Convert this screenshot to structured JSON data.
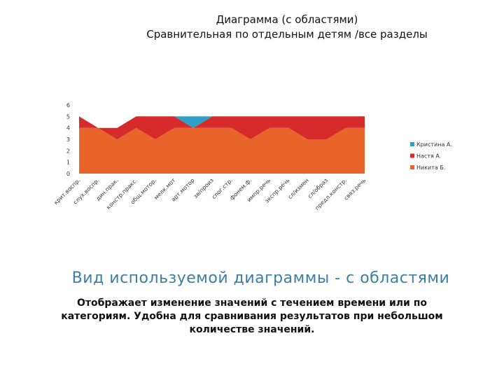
{
  "chart_data": {
    "type": "area",
    "stacked": true,
    "title": "Диаграмма (с областями)",
    "subtitle": "Сравнительная по отдельным детям /все разделы",
    "ylim": [
      0,
      6
    ],
    "yticks": [
      "0",
      "1",
      "2",
      "3",
      "4",
      "5",
      "6"
    ],
    "grid": false,
    "legend_position": "right",
    "categories": [
      "крит.воспр.",
      "слух.воспр.",
      "дин.прак.",
      "констр.пракс.",
      "общ.мотор.",
      "мелк.мот",
      "арт.мотор",
      "зв/произ",
      "слог.стр.",
      "фонем.ф.",
      "импр.речь",
      "экспр.речь",
      "сл/измен",
      "сл/образ",
      "предл.констр.",
      "связ.речь"
    ],
    "series": [
      {
        "name": "Никита Б.",
        "color": "#e8642a",
        "values": [
          4,
          4,
          3,
          4,
          3,
          4,
          4,
          4,
          4,
          3,
          4,
          4,
          3,
          3,
          4,
          4
        ]
      },
      {
        "name": "Настя А.",
        "color": "#d72a2a",
        "values": [
          1,
          0,
          1,
          1,
          2,
          1,
          0,
          1,
          1,
          2,
          1,
          1,
          2,
          2,
          1,
          1
        ]
      },
      {
        "name": "Кристина А.",
        "color": "#2e9ec4",
        "values": [
          0,
          0,
          0,
          0,
          0,
          0,
          1,
          0,
          0,
          0,
          0,
          0,
          0,
          0,
          0,
          0
        ]
      }
    ]
  },
  "slide": {
    "heading": "Вид используемой диаграммы - с областями",
    "text": "Отображает изменение значений с течением времени или по категориям. Удобна для сравнивания результатов при небольшом количестве значений."
  }
}
